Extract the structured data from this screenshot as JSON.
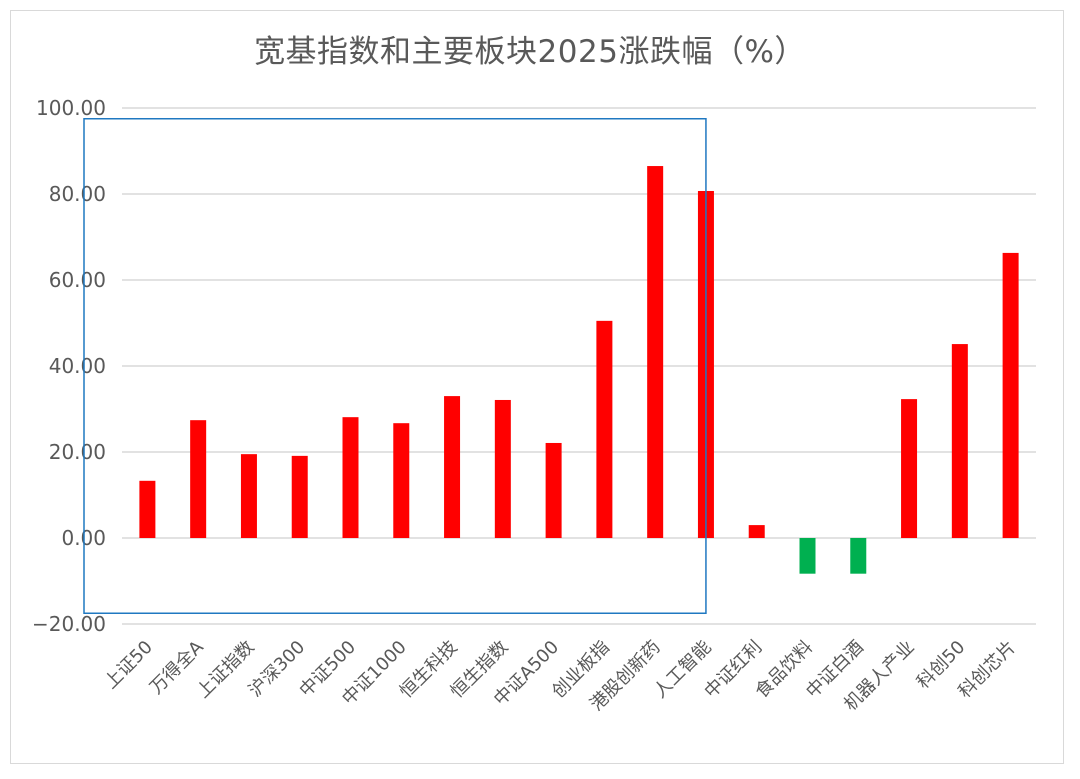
{
  "chart_data": {
    "type": "bar",
    "title": "宽基指数和主要板块2025涨跌幅（%）",
    "xlabel": "",
    "ylabel": "",
    "ylim": [
      -20,
      100
    ],
    "yticks": [
      100,
      80,
      60,
      40,
      20,
      0,
      -20
    ],
    "ytick_labels": [
      "100.00",
      "80.00",
      "60.00",
      "40.00",
      "20.00",
      "0.00",
      "−20.00"
    ],
    "grid": true,
    "legend": null,
    "categories": [
      "上证50",
      "万得全A",
      "上证指数",
      "沪深300",
      "中证500",
      "中证1000",
      "恒生科技",
      "恒生指数",
      "中证A500",
      "创业板指",
      "港股创新药",
      "人工智能",
      "中证红利",
      "食品饮料",
      "中证白酒",
      "机器人产业",
      "科创50",
      "科创芯片"
    ],
    "values": [
      13.3,
      27.4,
      19.5,
      19.1,
      28.1,
      26.7,
      33.0,
      32.1,
      22.1,
      50.5,
      86.5,
      80.7,
      3.0,
      -8.3,
      -8.3,
      32.3,
      45.1,
      66.3
    ],
    "colors": {
      "positive": "#ff0000",
      "negative": "#00b050",
      "grid": "#d9d9d9",
      "text": "#595959",
      "highlight_box": "#1f78c1"
    },
    "annotations": [
      {
        "type": "rectangle",
        "description": "blue outline box highlighting 上证50 through 人工智能",
        "from_category": "上证50",
        "to_category": "人工智能",
        "y_range": [
          -17.5,
          97.5
        ]
      }
    ]
  }
}
